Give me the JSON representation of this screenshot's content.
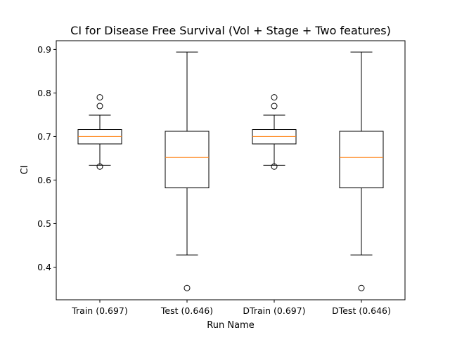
{
  "chart_data": {
    "type": "box",
    "title": "CI for Disease Free Survival (Vol + Stage + Two features)",
    "xlabel": "Run Name",
    "ylabel": "CI",
    "ylim": [
      0.325,
      0.92
    ],
    "yticks": [
      0.4,
      0.5,
      0.6,
      0.7,
      0.8,
      0.9
    ],
    "grid": false,
    "colors": {
      "box": "#000000",
      "median": "#ff7f0e",
      "flier": "#000000"
    },
    "series": [
      {
        "category": "Train (0.697)",
        "whisker_low": 0.634,
        "q1": 0.683,
        "median": 0.7,
        "q3": 0.716,
        "whisker_high": 0.749,
        "fliers": [
          0.631,
          0.77,
          0.79
        ]
      },
      {
        "category": "Test (0.646)",
        "whisker_low": 0.428,
        "q1": 0.582,
        "median": 0.652,
        "q3": 0.712,
        "whisker_high": 0.894,
        "fliers": [
          0.352
        ]
      },
      {
        "category": "DTrain (0.697)",
        "whisker_low": 0.634,
        "q1": 0.683,
        "median": 0.7,
        "q3": 0.716,
        "whisker_high": 0.749,
        "fliers": [
          0.631,
          0.77,
          0.79
        ]
      },
      {
        "category": "DTest (0.646)",
        "whisker_low": 0.428,
        "q1": 0.582,
        "median": 0.652,
        "q3": 0.712,
        "whisker_high": 0.894,
        "fliers": [
          0.352
        ]
      }
    ]
  }
}
